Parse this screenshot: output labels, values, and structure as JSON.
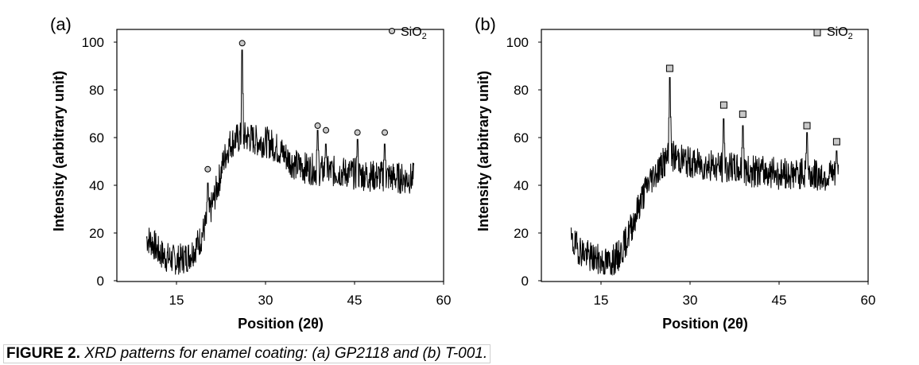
{
  "figure": {
    "caption_label": "FIGURE 2.",
    "caption_text": "XRD patterns for enamel coating: (a) GP2118 and (b) T-001."
  },
  "chart_data": [
    {
      "type": "line",
      "panel_label": "(a)",
      "sample": "GP2118",
      "xlabel": "Position (2θ)",
      "ylabel": "Intensity (arbitrary unit)",
      "xlim": [
        5,
        60
      ],
      "ylim": [
        0,
        110
      ],
      "xticks": [
        "15",
        "30",
        "45",
        "60"
      ],
      "yticks": [
        "0",
        "20",
        "40",
        "60",
        "80",
        "100"
      ],
      "legend": {
        "label": "SiO",
        "subscript": "2",
        "marker": "circle",
        "color": "#c8c8c8",
        "position": "top-right"
      },
      "baseline": [
        [
          10,
          19
        ],
        [
          11,
          17
        ],
        [
          12,
          13
        ],
        [
          13,
          11
        ],
        [
          14,
          10
        ],
        [
          15,
          9
        ],
        [
          16,
          10
        ],
        [
          17,
          11
        ],
        [
          18,
          14
        ],
        [
          19,
          18
        ],
        [
          20,
          25
        ],
        [
          21,
          33
        ],
        [
          22,
          42
        ],
        [
          23,
          53
        ],
        [
          24,
          60
        ],
        [
          25,
          62
        ],
        [
          26,
          63
        ],
        [
          27,
          63
        ],
        [
          28,
          62
        ],
        [
          29,
          61
        ],
        [
          30,
          61
        ],
        [
          31,
          60
        ],
        [
          32,
          58
        ],
        [
          33,
          56
        ],
        [
          34,
          53
        ],
        [
          35,
          51
        ],
        [
          36,
          50
        ],
        [
          38,
          49
        ],
        [
          40,
          48
        ],
        [
          42,
          48
        ],
        [
          45,
          47
        ],
        [
          48,
          46
        ],
        [
          50,
          46
        ],
        [
          53,
          45
        ],
        [
          55,
          45
        ]
      ],
      "noise_amplitude": 7,
      "peaks": [
        [
          20.3,
          43
        ],
        [
          26.1,
          101
        ],
        [
          38.8,
          66
        ],
        [
          40.2,
          60
        ],
        [
          45.5,
          62
        ],
        [
          50.1,
          60
        ]
      ],
      "markers": [
        {
          "x": 20.3,
          "y": 49
        },
        {
          "x": 26.1,
          "y": 104
        },
        {
          "x": 38.8,
          "y": 68
        },
        {
          "x": 40.2,
          "y": 66
        },
        {
          "x": 45.5,
          "y": 65
        },
        {
          "x": 50.1,
          "y": 65
        }
      ]
    },
    {
      "type": "line",
      "panel_label": "(b)",
      "sample": "T-001",
      "xlabel": "Position (2θ)",
      "ylabel": "Intensity (arbitrary unit)",
      "xlim": [
        5,
        60
      ],
      "ylim": [
        0,
        110
      ],
      "xticks": [
        "15",
        "30",
        "45",
        "60"
      ],
      "yticks": [
        "0",
        "20",
        "40",
        "60",
        "80",
        "100"
      ],
      "legend": {
        "label": "SiO",
        "subscript": "2",
        "marker": "square",
        "color": "#c8c8c8",
        "position": "top-right"
      },
      "baseline": [
        [
          10,
          17
        ],
        [
          11,
          15
        ],
        [
          12,
          13
        ],
        [
          13,
          11
        ],
        [
          14,
          10
        ],
        [
          15,
          9
        ],
        [
          16,
          8
        ],
        [
          17,
          9
        ],
        [
          18,
          11
        ],
        [
          19,
          16
        ],
        [
          20,
          23
        ],
        [
          21,
          30
        ],
        [
          22,
          37
        ],
        [
          23,
          43
        ],
        [
          24,
          47
        ],
        [
          25,
          50
        ],
        [
          26,
          53
        ],
        [
          27,
          55
        ],
        [
          28,
          54
        ],
        [
          30,
          52
        ],
        [
          32,
          51
        ],
        [
          35,
          50
        ],
        [
          38,
          49
        ],
        [
          40,
          48
        ],
        [
          43,
          48
        ],
        [
          45,
          47
        ],
        [
          48,
          47
        ],
        [
          50,
          47
        ],
        [
          53,
          46
        ],
        [
          55,
          46
        ]
      ],
      "noise_amplitude": 7,
      "peaks": [
        [
          26.6,
          89
        ],
        [
          35.7,
          71
        ],
        [
          38.9,
          68
        ],
        [
          49.7,
          65
        ],
        [
          54.7,
          57
        ]
      ],
      "markers": [
        {
          "x": 26.6,
          "y": 93
        },
        {
          "x": 35.7,
          "y": 77
        },
        {
          "x": 38.9,
          "y": 73
        },
        {
          "x": 49.7,
          "y": 68
        },
        {
          "x": 54.7,
          "y": 61
        }
      ]
    }
  ]
}
